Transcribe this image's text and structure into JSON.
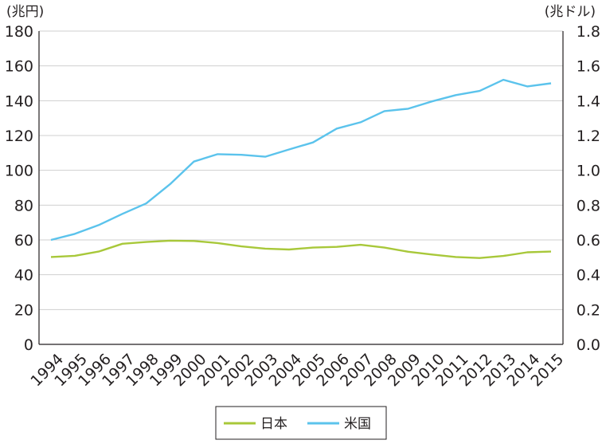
{
  "chart_data": {
    "type": "line",
    "title": "",
    "y_left_unit": "(兆円)",
    "y_right_unit": "(兆ドル)",
    "x": [
      "1994",
      "1995",
      "1996",
      "1997",
      "1998",
      "1999",
      "2000",
      "2001",
      "2002",
      "2003",
      "2004",
      "2005",
      "2006",
      "2007",
      "2008",
      "2009",
      "2010",
      "2011",
      "2012",
      "2013",
      "2014",
      "2015"
    ],
    "y_left_ticks": [
      "0",
      "20",
      "40",
      "60",
      "80",
      "100",
      "120",
      "140",
      "160",
      "180"
    ],
    "y_right_ticks": [
      "0.0",
      "0.2",
      "0.4",
      "0.6",
      "0.8",
      "1.0",
      "1.2",
      "1.4",
      "1.6",
      "1.8"
    ],
    "ylim_left": [
      0,
      180
    ],
    "ylim_right": [
      0,
      1.8
    ],
    "grid": true,
    "legend_position": "bottom",
    "series": [
      {
        "name": "日本",
        "axis": "left",
        "color": "#a8c83a",
        "values": [
          50.2,
          50.9,
          53.3,
          57.8,
          58.8,
          59.6,
          59.4,
          58.2,
          56.3,
          55.0,
          54.5,
          55.6,
          56.0,
          57.2,
          55.6,
          53.2,
          51.6,
          50.2,
          49.6,
          50.8,
          52.9,
          53.3
        ]
      },
      {
        "name": "米国",
        "axis": "right",
        "color": "#5bc3ec",
        "values": [
          0.6,
          0.635,
          0.685,
          0.75,
          0.81,
          0.92,
          1.05,
          1.093,
          1.089,
          1.078,
          1.12,
          1.16,
          1.24,
          1.276,
          1.34,
          1.354,
          1.396,
          1.432,
          1.456,
          1.52,
          1.482,
          1.5
        ]
      }
    ]
  }
}
